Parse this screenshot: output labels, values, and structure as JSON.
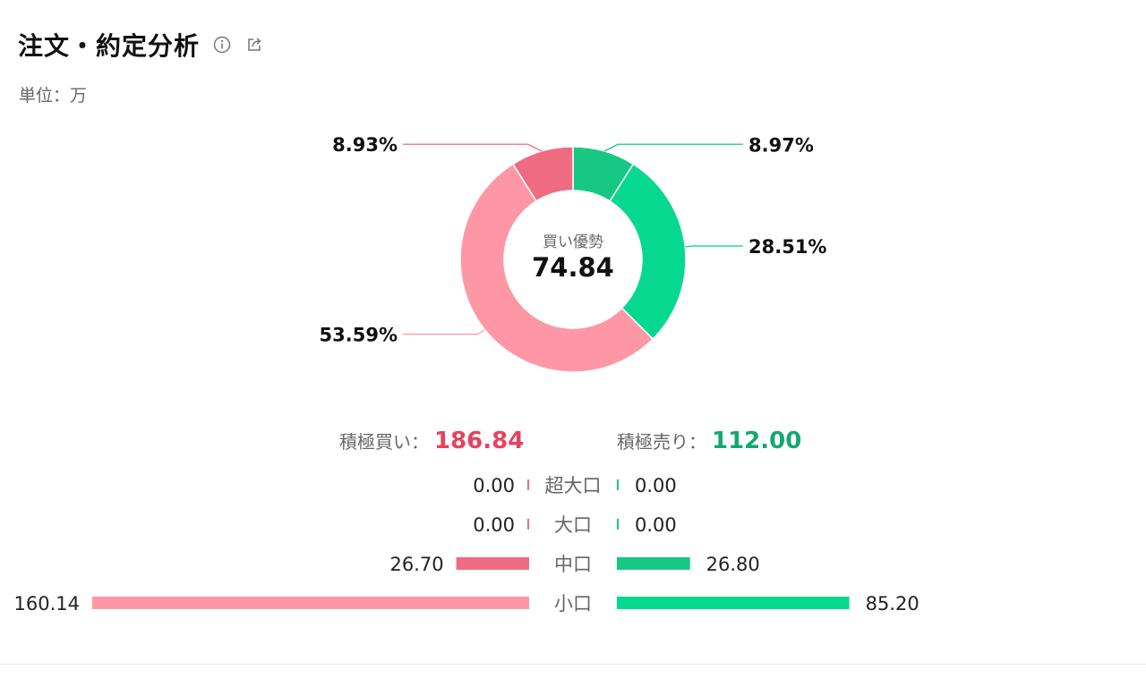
{
  "header": {
    "title": "注文・約定分析",
    "info_icon": "info-icon",
    "share_icon": "share-icon"
  },
  "unit_label": "単位：万",
  "center": {
    "label": "買い優勢",
    "value": "74.84"
  },
  "totals": {
    "buy_label": "積極買い：",
    "buy_value": "186.84",
    "sell_label": "積極売り：",
    "sell_value": "112.00"
  },
  "colors": {
    "buy_large": "#ef6b82",
    "buy_small": "#fd97a6",
    "sell_large": "#17c784",
    "sell_small": "#06d98f",
    "buy_text": "#e5435e",
    "sell_text": "#14a870"
  },
  "chart_data": [
    {
      "type": "pie",
      "variant": "donut",
      "slices": [
        {
          "label": "8.97%",
          "value": 8.97,
          "side": "sell",
          "color": "#17c784"
        },
        {
          "label": "28.51%",
          "value": 28.51,
          "side": "sell",
          "color": "#06d98f"
        },
        {
          "label": "53.59%",
          "value": 53.59,
          "side": "buy",
          "color": "#fd97a6"
        },
        {
          "label": "8.93%",
          "value": 8.93,
          "side": "buy",
          "color": "#ef6b82"
        }
      ]
    },
    {
      "type": "bar",
      "orientation": "horizontal-diverging",
      "categories": [
        "超大口",
        "大口",
        "中口",
        "小口"
      ],
      "series": [
        {
          "side": "buy",
          "values": [
            0.0,
            0.0,
            26.7,
            160.14
          ],
          "labels": [
            "0.00",
            "0.00",
            "26.70",
            "160.14"
          ],
          "colors": [
            "#ef6b82",
            "#ef6b82",
            "#ef6b82",
            "#fd97a6"
          ]
        },
        {
          "side": "sell",
          "values": [
            0.0,
            0.0,
            26.8,
            85.2
          ],
          "labels": [
            "0.00",
            "0.00",
            "26.80",
            "85.20"
          ],
          "colors": [
            "#17c784",
            "#17c784",
            "#17c784",
            "#06d98f"
          ]
        }
      ]
    }
  ]
}
